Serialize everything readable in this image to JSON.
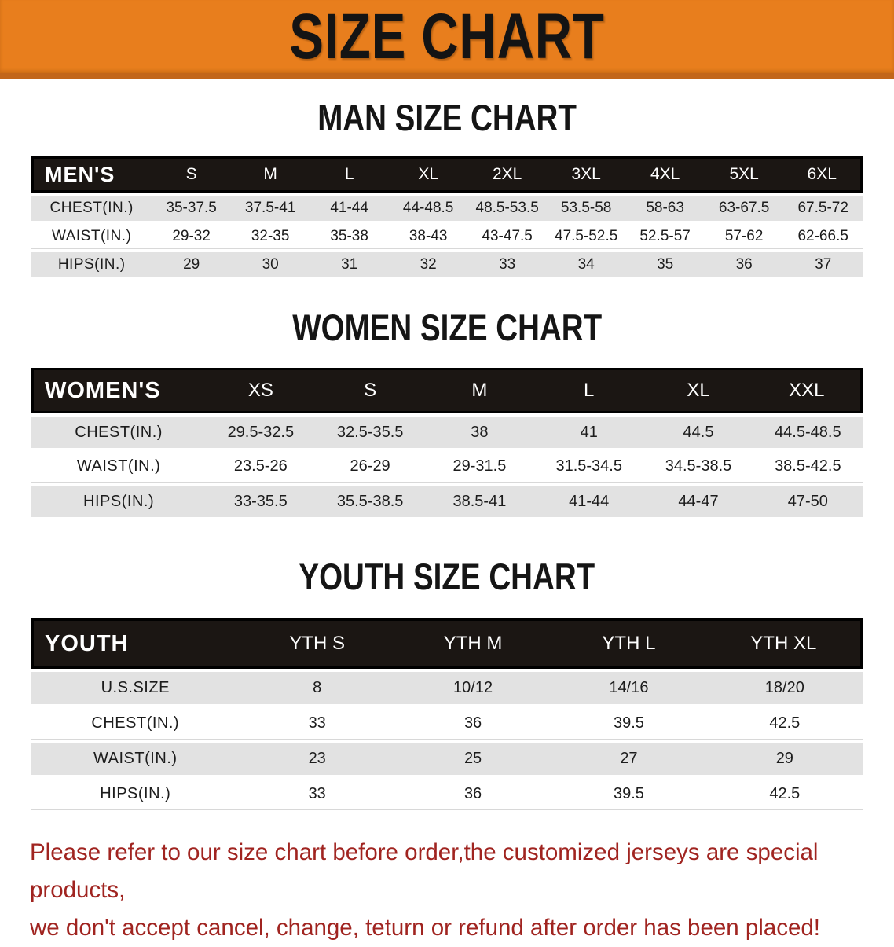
{
  "banner": {
    "title": "SIZE CHART"
  },
  "colors": {
    "banner_bg": "#E87E1D",
    "banner_border": "#C2661A",
    "header_bar_bg": "#1B1613",
    "row_shade": "#E2E2E2",
    "footer_text": "#A02420"
  },
  "tables": {
    "men": {
      "heading": "MAN SIZE CHART",
      "label": "MEN'S",
      "sizes": [
        "S",
        "M",
        "L",
        "XL",
        "2XL",
        "3XL",
        "4XL",
        "5XL",
        "6XL"
      ],
      "rows": [
        {
          "label": "CHEST(IN.)",
          "values": [
            "35-37.5",
            "37.5-41",
            "41-44",
            "44-48.5",
            "48.5-53.5",
            "53.5-58",
            "58-63",
            "63-67.5",
            "67.5-72"
          ]
        },
        {
          "label": "WAIST(IN.)",
          "values": [
            "29-32",
            "32-35",
            "35-38",
            "38-43",
            "43-47.5",
            "47.5-52.5",
            "52.5-57",
            "57-62",
            "62-66.5"
          ]
        },
        {
          "label": "HIPS(IN.)",
          "values": [
            "29",
            "30",
            "31",
            "32",
            "33",
            "34",
            "35",
            "36",
            "37"
          ]
        }
      ]
    },
    "women": {
      "heading": "WOMEN SIZE CHART",
      "label": "WOMEN'S",
      "sizes": [
        "XS",
        "S",
        "M",
        "L",
        "XL",
        "XXL"
      ],
      "rows": [
        {
          "label": "CHEST(IN.)",
          "values": [
            "29.5-32.5",
            "32.5-35.5",
            "38",
            "41",
            "44.5",
            "44.5-48.5"
          ]
        },
        {
          "label": "WAIST(IN.)",
          "values": [
            "23.5-26",
            "26-29",
            "29-31.5",
            "31.5-34.5",
            "34.5-38.5",
            "38.5-42.5"
          ]
        },
        {
          "label": "HIPS(IN.)",
          "values": [
            "33-35.5",
            "35.5-38.5",
            "38.5-41",
            "41-44",
            "44-47",
            "47-50"
          ]
        }
      ]
    },
    "youth": {
      "heading": "YOUTH SIZE CHART",
      "label": "YOUTH",
      "sizes": [
        "YTH S",
        "YTH M",
        "YTH L",
        "YTH XL"
      ],
      "rows": [
        {
          "label": "U.S.SIZE",
          "values": [
            "8",
            "10/12",
            "14/16",
            "18/20"
          ]
        },
        {
          "label": "CHEST(IN.)",
          "values": [
            "33",
            "36",
            "39.5",
            "42.5"
          ]
        },
        {
          "label": "WAIST(IN.)",
          "values": [
            "23",
            "25",
            "27",
            "29"
          ]
        },
        {
          "label": "HIPS(IN.)",
          "values": [
            "33",
            "36",
            "39.5",
            "42.5"
          ]
        }
      ]
    }
  },
  "footer": {
    "line1": "Please refer to our size chart before order,the customized jerseys are special products,",
    "line2": "we don't accept cancel, change, teturn or refund after order has been placed!"
  }
}
